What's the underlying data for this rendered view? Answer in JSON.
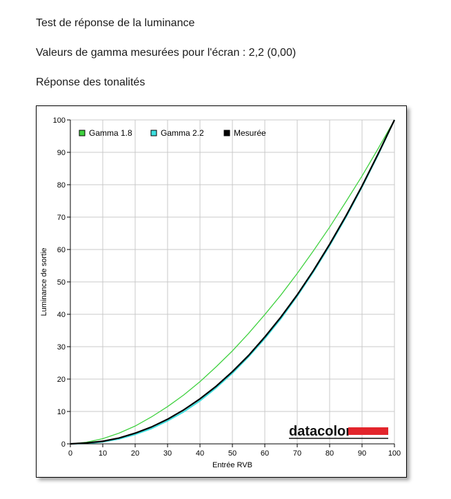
{
  "headings": {
    "title": "Test de réponse de la luminance",
    "gamma": "Valeurs de gamma mesurées pour l'écran : 2,2 (0,00)",
    "tone": "Réponse des tonalités"
  },
  "brand": {
    "text": "datacolor",
    "bar_color": "#e3252c"
  },
  "chart_data": {
    "type": "line",
    "xlabel": "Entrée RVB",
    "ylabel": "Luminance de sortie",
    "xlim": [
      0,
      100
    ],
    "ylim": [
      0,
      100
    ],
    "xticks": [
      0,
      10,
      20,
      30,
      40,
      50,
      60,
      70,
      80,
      90,
      100
    ],
    "yticks": [
      0,
      10,
      20,
      30,
      40,
      50,
      60,
      70,
      80,
      90,
      100
    ],
    "grid": true,
    "legend_position": "top-left",
    "series": [
      {
        "name": "Gamma 1.8",
        "color": "#3fd13f",
        "x": [
          0,
          5,
          10,
          15,
          20,
          25,
          30,
          35,
          40,
          45,
          50,
          55,
          60,
          65,
          70,
          75,
          80,
          85,
          90,
          95,
          100
        ],
        "y": [
          0,
          0.5,
          1.6,
          3.3,
          5.5,
          8.3,
          11.5,
          15.1,
          19.2,
          23.8,
          28.7,
          34.1,
          39.9,
          46.0,
          52.6,
          59.6,
          66.9,
          74.7,
          82.7,
          91.2,
          100
        ]
      },
      {
        "name": "Gamma 2.2",
        "color": "#3cdede",
        "x": [
          0,
          5,
          10,
          15,
          20,
          25,
          30,
          35,
          40,
          45,
          50,
          55,
          60,
          65,
          70,
          75,
          80,
          85,
          90,
          95,
          100
        ],
        "y": [
          0,
          0.1,
          0.6,
          1.5,
          2.9,
          4.7,
          7.1,
          9.9,
          13.3,
          17.3,
          21.8,
          26.9,
          32.5,
          38.7,
          45.6,
          53.1,
          61.2,
          69.9,
          79.3,
          89.3,
          100
        ]
      },
      {
        "name": "Mesurée",
        "color": "#000000",
        "x": [
          0,
          5,
          10,
          15,
          20,
          25,
          30,
          35,
          40,
          45,
          50,
          55,
          60,
          65,
          70,
          75,
          80,
          85,
          90,
          95,
          100
        ],
        "y": [
          0,
          0.3,
          0.8,
          1.8,
          3.3,
          5.2,
          7.6,
          10.5,
          13.9,
          17.8,
          22.3,
          27.3,
          33.0,
          39.2,
          46.0,
          53.5,
          61.6,
          70.3,
          79.6,
          89.6,
          100
        ]
      }
    ]
  }
}
